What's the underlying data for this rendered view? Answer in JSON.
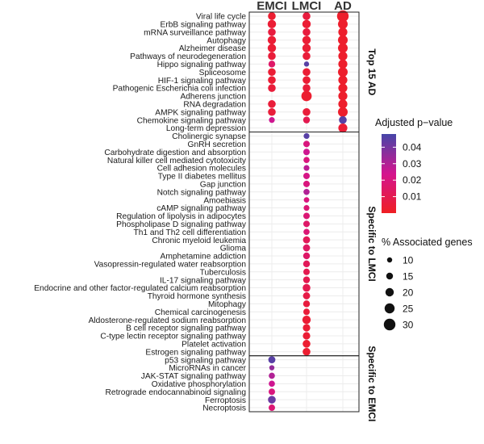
{
  "chart_data": {
    "type": "scatter",
    "subtype": "dot-plot",
    "columns": [
      "EMCI",
      "LMCI",
      "AD"
    ],
    "panels": [
      {
        "label": "Top 15 AD",
        "rows": [
          {
            "term": "Viral life cycle",
            "points": [
              {
                "col": "EMCI",
                "p": 0.003,
                "genes": 18
              },
              {
                "col": "LMCI",
                "p": 0.006,
                "genes": 18
              },
              {
                "col": "AD",
                "p": 0.002,
                "genes": 30
              }
            ]
          },
          {
            "term": "ErbB signaling pathway",
            "points": [
              {
                "col": "EMCI",
                "p": 0.004,
                "genes": 20
              },
              {
                "col": "LMCI",
                "p": 0.004,
                "genes": 20
              },
              {
                "col": "AD",
                "p": 0.002,
                "genes": 24
              }
            ]
          },
          {
            "term": "mRNA surveillance pathway",
            "points": [
              {
                "col": "EMCI",
                "p": 0.006,
                "genes": 18
              },
              {
                "col": "LMCI",
                "p": 0.006,
                "genes": 18
              },
              {
                "col": "AD",
                "p": 0.002,
                "genes": 22
              }
            ]
          },
          {
            "term": "Autophagy",
            "points": [
              {
                "col": "EMCI",
                "p": 0.004,
                "genes": 20
              },
              {
                "col": "LMCI",
                "p": 0.004,
                "genes": 20
              },
              {
                "col": "AD",
                "p": 0.002,
                "genes": 24
              }
            ]
          },
          {
            "term": "Alzheimer disease",
            "points": [
              {
                "col": "EMCI",
                "p": 0.004,
                "genes": 20
              },
              {
                "col": "LMCI",
                "p": 0.004,
                "genes": 20
              },
              {
                "col": "AD",
                "p": 0.002,
                "genes": 24
              }
            ]
          },
          {
            "term": "Pathways of neurodegeneration",
            "points": [
              {
                "col": "EMCI",
                "p": 0.005,
                "genes": 18
              },
              {
                "col": "LMCI",
                "p": 0.005,
                "genes": 18
              },
              {
                "col": "AD",
                "p": 0.002,
                "genes": 22
              }
            ]
          },
          {
            "term": "Hippo signaling pathway",
            "points": [
              {
                "col": "EMCI",
                "p": 0.015,
                "genes": 15
              },
              {
                "col": "LMCI",
                "p": 0.045,
                "genes": 10
              },
              {
                "col": "AD",
                "p": 0.002,
                "genes": 22
              }
            ]
          },
          {
            "term": "Spliceosome",
            "points": [
              {
                "col": "EMCI",
                "p": 0.004,
                "genes": 18
              },
              {
                "col": "LMCI",
                "p": 0.004,
                "genes": 18
              },
              {
                "col": "AD",
                "p": 0.002,
                "genes": 24
              }
            ]
          },
          {
            "term": "HIF-1 signaling pathway",
            "points": [
              {
                "col": "EMCI",
                "p": 0.004,
                "genes": 18
              },
              {
                "col": "LMCI",
                "p": 0.004,
                "genes": 18
              },
              {
                "col": "AD",
                "p": 0.002,
                "genes": 22
              }
            ]
          },
          {
            "term": "Pathogenic Escherichia coli infection",
            "points": [
              {
                "col": "EMCI",
                "p": 0.005,
                "genes": 18
              },
              {
                "col": "LMCI",
                "p": 0.005,
                "genes": 18
              },
              {
                "col": "AD",
                "p": 0.002,
                "genes": 22
              }
            ]
          },
          {
            "term": "Adherens junction",
            "points": [
              {
                "col": "LMCI",
                "p": 0.003,
                "genes": 26
              },
              {
                "col": "AD",
                "p": 0.002,
                "genes": 22
              }
            ]
          },
          {
            "term": "RNA degradation",
            "points": [
              {
                "col": "EMCI",
                "p": 0.005,
                "genes": 18
              },
              {
                "col": "AD",
                "p": 0.002,
                "genes": 22
              }
            ]
          },
          {
            "term": "AMPK signaling pathway",
            "points": [
              {
                "col": "EMCI",
                "p": 0.005,
                "genes": 18
              },
              {
                "col": "LMCI",
                "p": 0.005,
                "genes": 18
              },
              {
                "col": "AD",
                "p": 0.002,
                "genes": 24
              }
            ]
          },
          {
            "term": "Chemokine signaling pathway",
            "points": [
              {
                "col": "EMCI",
                "p": 0.025,
                "genes": 12
              },
              {
                "col": "LMCI",
                "p": 0.01,
                "genes": 15
              },
              {
                "col": "AD",
                "p": 0.045,
                "genes": 18
              }
            ]
          },
          {
            "term": "Long-term depression",
            "points": [
              {
                "col": "AD",
                "p": 0.004,
                "genes": 22
              }
            ]
          }
        ]
      },
      {
        "label": "Specific to LMCI",
        "rows": [
          {
            "term": "Cholinergic synapse",
            "points": [
              {
                "col": "LMCI",
                "p": 0.045,
                "genes": 12
              }
            ]
          },
          {
            "term": "GnRH secretion",
            "points": [
              {
                "col": "LMCI",
                "p": 0.02,
                "genes": 14
              }
            ]
          },
          {
            "term": "Carbohydrate digestion and absorption",
            "points": [
              {
                "col": "LMCI",
                "p": 0.025,
                "genes": 14
              }
            ]
          },
          {
            "term": "Natural killer cell mediated cytotoxicity",
            "points": [
              {
                "col": "LMCI",
                "p": 0.02,
                "genes": 13
              }
            ]
          },
          {
            "term": "Cell adhesion molecules",
            "points": [
              {
                "col": "LMCI",
                "p": 0.028,
                "genes": 12
              }
            ]
          },
          {
            "term": "Type II diabetes mellitus",
            "points": [
              {
                "col": "LMCI",
                "p": 0.022,
                "genes": 14
              }
            ]
          },
          {
            "term": "Gap junction",
            "points": [
              {
                "col": "LMCI",
                "p": 0.02,
                "genes": 14
              }
            ]
          },
          {
            "term": "Notch signaling pathway",
            "points": [
              {
                "col": "LMCI",
                "p": 0.03,
                "genes": 13
              }
            ]
          },
          {
            "term": "Amoebiasis",
            "points": [
              {
                "col": "LMCI",
                "p": 0.02,
                "genes": 11
              }
            ]
          },
          {
            "term": "cAMP signaling pathway",
            "points": [
              {
                "col": "LMCI",
                "p": 0.018,
                "genes": 12
              }
            ]
          },
          {
            "term": "Regulation of lipolysis in adipocytes",
            "points": [
              {
                "col": "LMCI",
                "p": 0.018,
                "genes": 14
              }
            ]
          },
          {
            "term": "Phospholipase D signaling pathway",
            "points": [
              {
                "col": "LMCI",
                "p": 0.015,
                "genes": 14
              }
            ]
          },
          {
            "term": "Th1 and Th2 cell differentiation",
            "points": [
              {
                "col": "LMCI",
                "p": 0.018,
                "genes": 13
              }
            ]
          },
          {
            "term": "Chronic myeloid leukemia",
            "points": [
              {
                "col": "LMCI",
                "p": 0.012,
                "genes": 16
              }
            ]
          },
          {
            "term": "Glioma",
            "points": [
              {
                "col": "LMCI",
                "p": 0.014,
                "genes": 16
              }
            ]
          },
          {
            "term": "Amphetamine addiction",
            "points": [
              {
                "col": "LMCI",
                "p": 0.015,
                "genes": 15
              }
            ]
          },
          {
            "term": "Vasopressin-regulated water reabsorption",
            "points": [
              {
                "col": "LMCI",
                "p": 0.012,
                "genes": 15
              }
            ]
          },
          {
            "term": "Tuberculosis",
            "points": [
              {
                "col": "LMCI",
                "p": 0.01,
                "genes": 14
              }
            ]
          },
          {
            "term": "IL-17 signaling pathway",
            "points": [
              {
                "col": "LMCI",
                "p": 0.01,
                "genes": 15
              }
            ]
          },
          {
            "term": "Endocrine and other factor-regulated calcium reabsorption",
            "points": [
              {
                "col": "LMCI",
                "p": 0.01,
                "genes": 18
              }
            ]
          },
          {
            "term": "Thyroid hormone synthesis",
            "points": [
              {
                "col": "LMCI",
                "p": 0.008,
                "genes": 16
              }
            ]
          },
          {
            "term": "Mitophagy",
            "points": [
              {
                "col": "LMCI",
                "p": 0.006,
                "genes": 15
              }
            ]
          },
          {
            "term": "Chemical carcinogenesis",
            "points": [
              {
                "col": "LMCI",
                "p": 0.005,
                "genes": 14
              }
            ]
          },
          {
            "term": "Aldosterone-regulated sodium reabsorption",
            "points": [
              {
                "col": "LMCI",
                "p": 0.004,
                "genes": 20
              }
            ]
          },
          {
            "term": "B cell receptor signaling pathway",
            "points": [
              {
                "col": "LMCI",
                "p": 0.004,
                "genes": 17
              }
            ]
          },
          {
            "term": "C-type lectin receptor signaling pathway",
            "points": [
              {
                "col": "LMCI",
                "p": 0.004,
                "genes": 17
              }
            ]
          },
          {
            "term": "Platelet activation",
            "points": [
              {
                "col": "LMCI",
                "p": 0.003,
                "genes": 18
              }
            ]
          },
          {
            "term": "Estrogen signaling pathway",
            "points": [
              {
                "col": "LMCI",
                "p": 0.003,
                "genes": 18
              }
            ]
          }
        ]
      },
      {
        "label": "Specific to EMCI",
        "rows": [
          {
            "term": "p53 signaling pathway",
            "points": [
              {
                "col": "EMCI",
                "p": 0.045,
                "genes": 16
              }
            ]
          },
          {
            "term": "MicroRNAs in cancer",
            "points": [
              {
                "col": "EMCI",
                "p": 0.035,
                "genes": 10
              }
            ]
          },
          {
            "term": "JAK-STAT signaling pathway",
            "points": [
              {
                "col": "EMCI",
                "p": 0.03,
                "genes": 13
              }
            ]
          },
          {
            "term": "Oxidative phosphorylation",
            "points": [
              {
                "col": "EMCI",
                "p": 0.025,
                "genes": 13
              }
            ]
          },
          {
            "term": "Retrograde endocannabinoid signaling",
            "points": [
              {
                "col": "EMCI",
                "p": 0.02,
                "genes": 14
              }
            ]
          },
          {
            "term": "Ferroptosis",
            "points": [
              {
                "col": "EMCI",
                "p": 0.042,
                "genes": 18
              }
            ]
          },
          {
            "term": "Necroptosis",
            "points": [
              {
                "col": "EMCI",
                "p": 0.018,
                "genes": 14
              }
            ]
          }
        ]
      }
    ],
    "color_legend": {
      "title": "Adjusted p−value",
      "ticks": [
        "0.04",
        "0.03",
        "0.02",
        "0.01"
      ],
      "tick_values": [
        0.04,
        0.03,
        0.02,
        0.01
      ],
      "range": [
        0.0,
        0.048
      ],
      "low_color": "#ef1f23",
      "mid_color": "#d4148f",
      "high_color": "#4646a8"
    },
    "size_legend": {
      "title": "% Associated genes",
      "ticks": [
        "10",
        "15",
        "20",
        "25",
        "30"
      ],
      "values": [
        10,
        15,
        20,
        25,
        30
      ]
    }
  }
}
